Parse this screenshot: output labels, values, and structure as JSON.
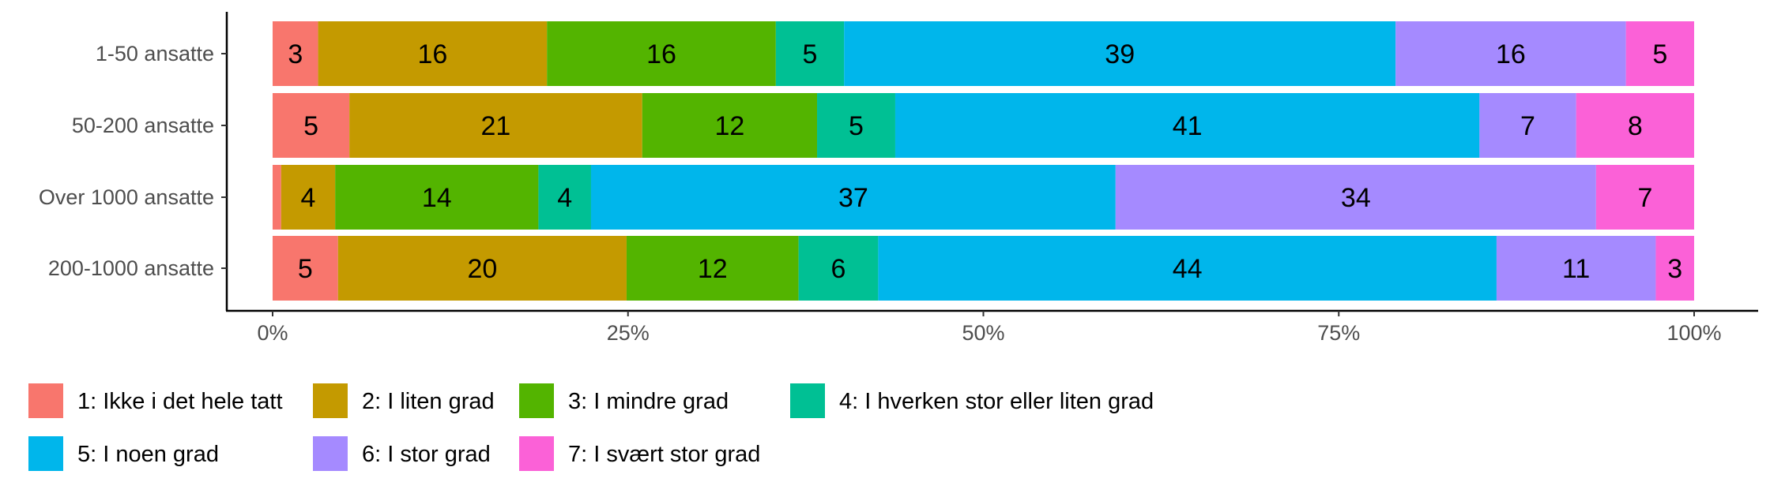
{
  "chart_data": {
    "type": "bar",
    "orientation": "horizontal",
    "stacked": "percent",
    "categories": [
      "1-50 ansatte",
      "50-200 ansatte",
      "Over 1000 ansatte",
      "200-1000 ansatte"
    ],
    "series": [
      {
        "name": "1: Ikke i det hele tatt",
        "color": "#F8766D",
        "values": [
          3.2,
          5.4,
          0.6,
          4.6
        ],
        "labels": [
          "3",
          "5",
          "",
          "5"
        ]
      },
      {
        "name": "2: I liten grad",
        "color": "#C49A00",
        "values": [
          16.1,
          20.6,
          3.8,
          20.3
        ],
        "labels": [
          "16",
          "21",
          "4",
          "20"
        ]
      },
      {
        "name": "3: I mindre grad",
        "color": "#53B400",
        "values": [
          16.1,
          12.3,
          14.3,
          12.1
        ],
        "labels": [
          "16",
          "12",
          "14",
          "12"
        ]
      },
      {
        "name": "4: I hverken stor eller liten grad",
        "color": "#00C094",
        "values": [
          4.8,
          5.5,
          3.7,
          5.6
        ],
        "labels": [
          "5",
          "5",
          "4",
          "6"
        ]
      },
      {
        "name": "5: I noen grad",
        "color": "#00B6EB",
        "values": [
          38.8,
          41.1,
          36.9,
          43.5
        ],
        "labels": [
          "39",
          "41",
          "37",
          "44"
        ]
      },
      {
        "name": "6: I stor grad",
        "color": "#A58AFF",
        "values": [
          16.2,
          6.8,
          33.8,
          11.2
        ],
        "labels": [
          "16",
          "7",
          "34",
          "11"
        ]
      },
      {
        "name": "7: I svært stor grad",
        "color": "#FB61D7",
        "values": [
          4.8,
          8.3,
          6.9,
          2.7
        ],
        "labels": [
          "5",
          "8",
          "7",
          "3"
        ]
      }
    ],
    "xticks": [
      "0%",
      "25%",
      "50%",
      "75%",
      "100%"
    ],
    "xlim": [
      0,
      100
    ],
    "xlabel": "",
    "ylabel": "",
    "title": "",
    "grid": false,
    "legend_position": "bottom"
  }
}
